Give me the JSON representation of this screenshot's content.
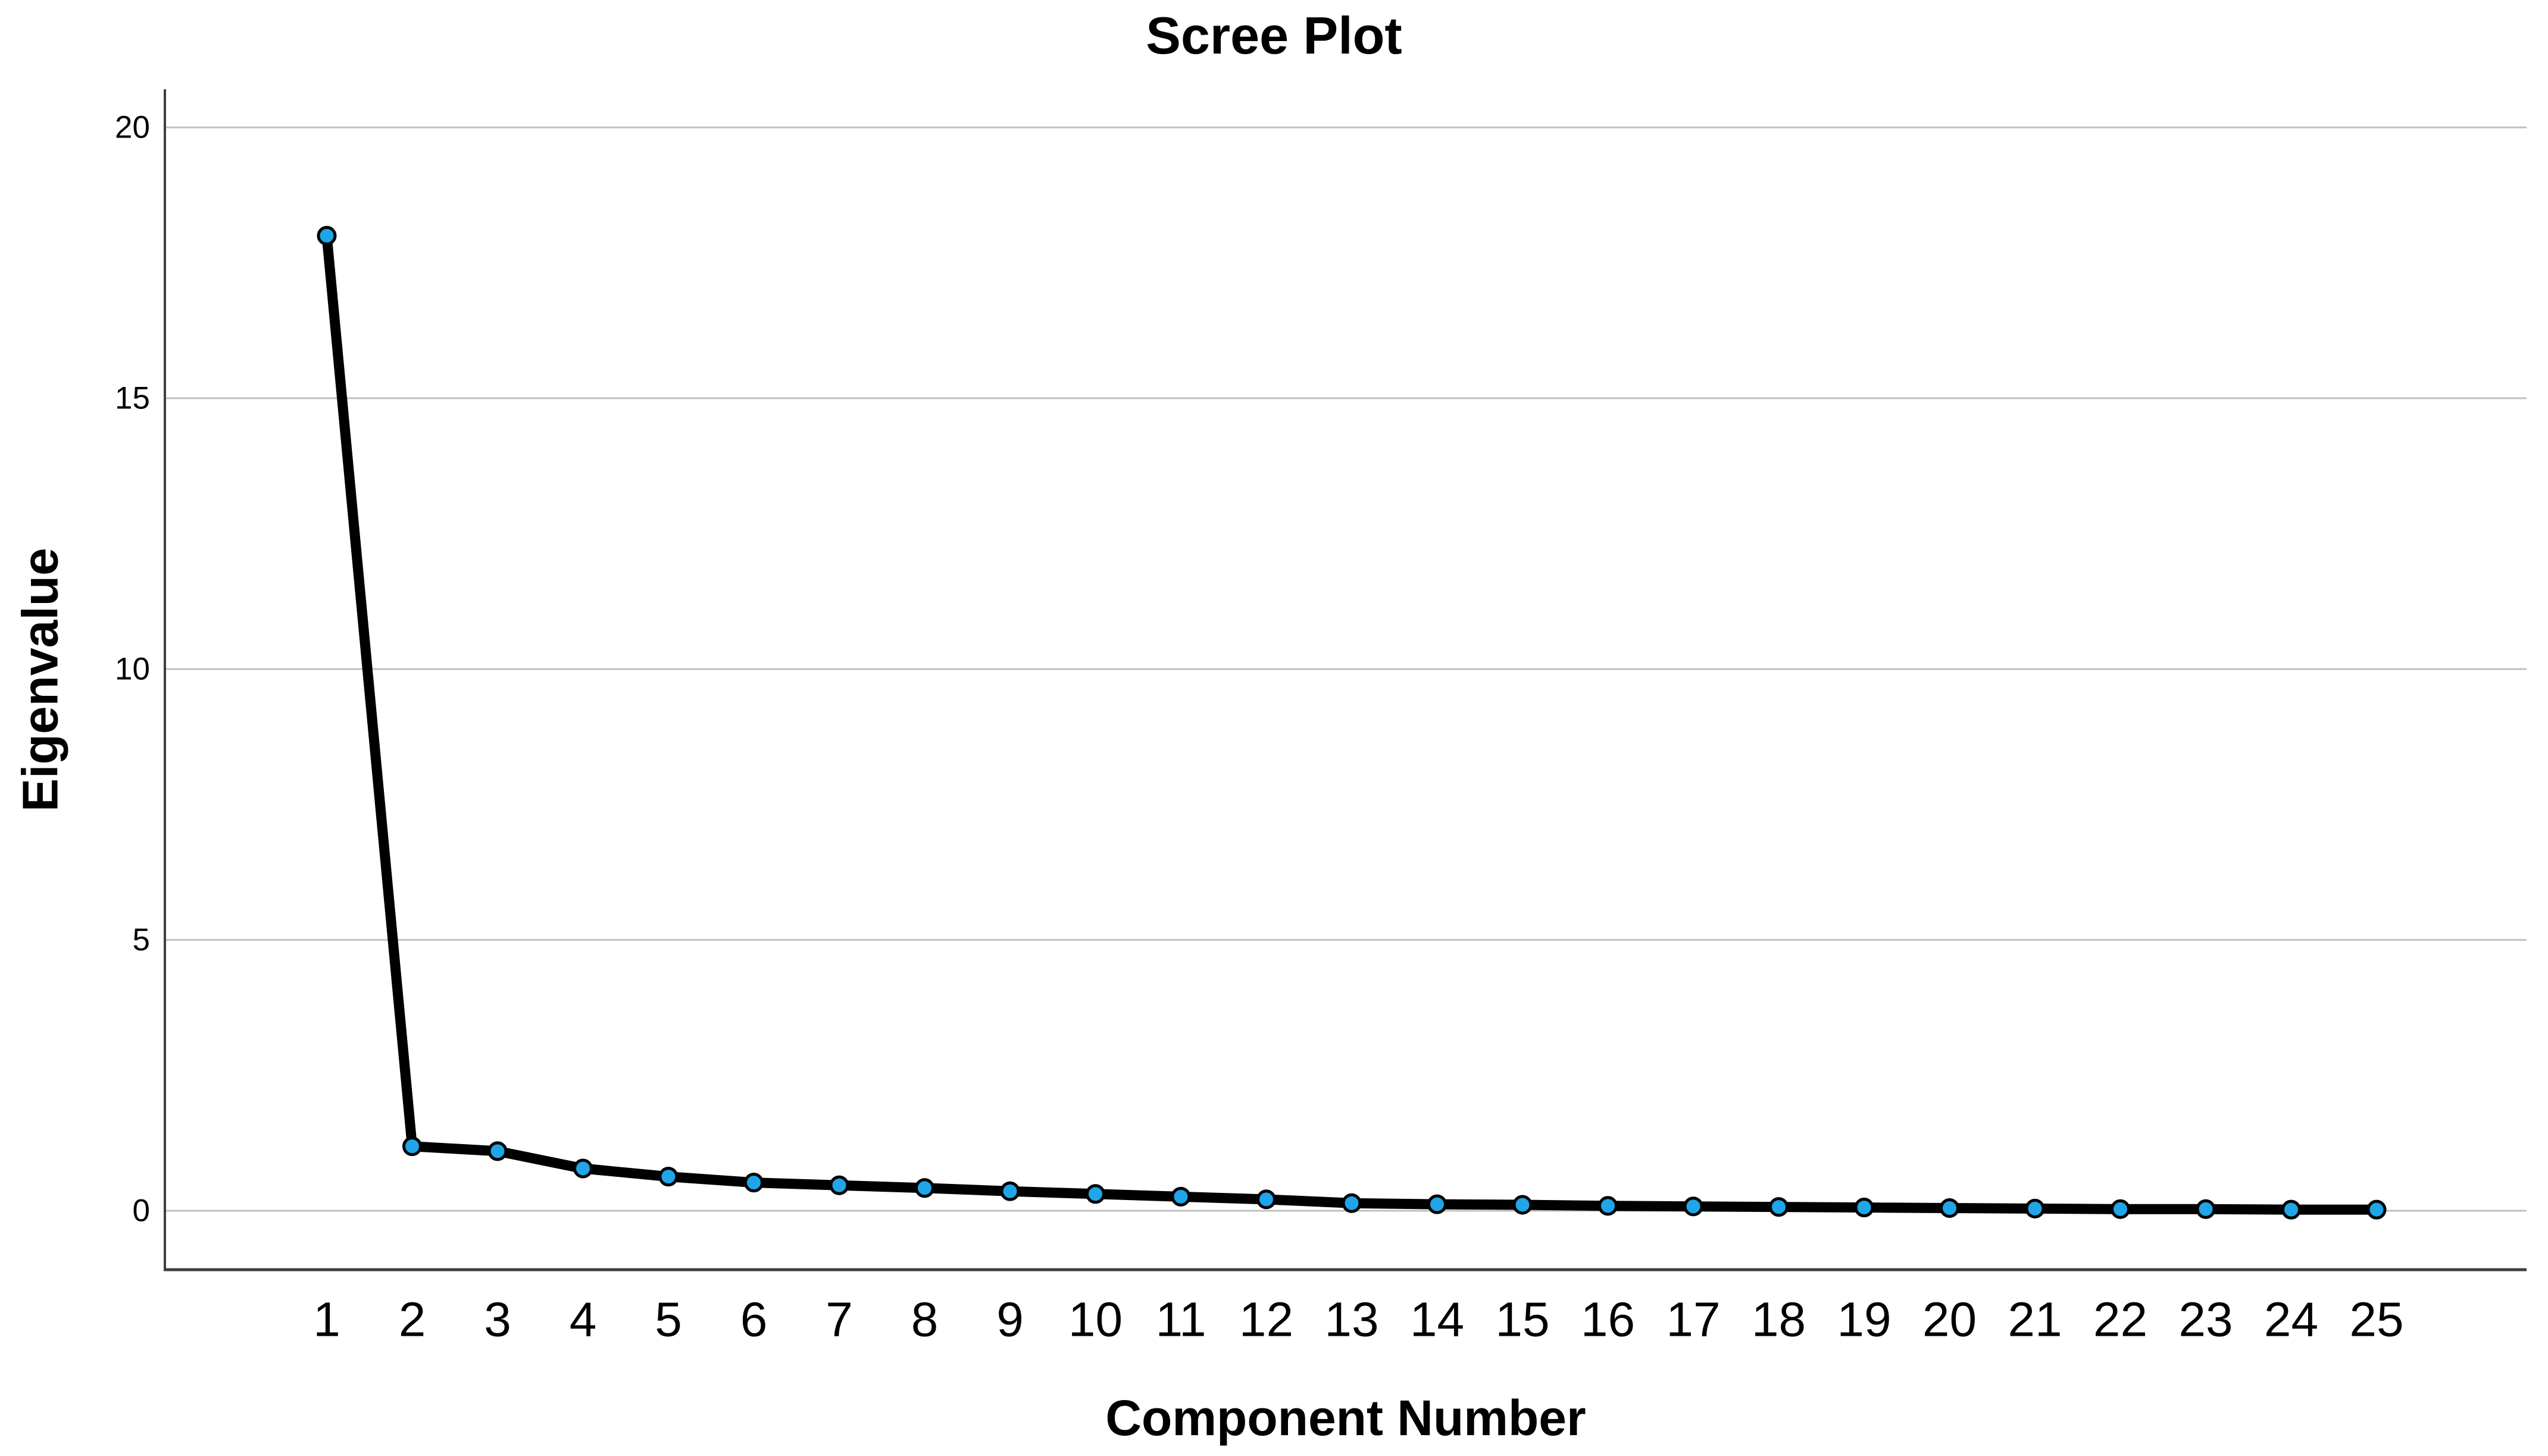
{
  "figure": {
    "background_color": "#ffffff"
  },
  "chart_data": {
    "type": "line",
    "title": "Scree Plot",
    "xlabel": "Component Number",
    "ylabel": "Eigenvalue",
    "x": [
      1,
      2,
      3,
      4,
      5,
      6,
      7,
      8,
      9,
      10,
      11,
      12,
      13,
      14,
      15,
      16,
      17,
      18,
      19,
      20,
      21,
      22,
      23,
      24,
      25
    ],
    "series": [
      {
        "name": "Eigenvalue",
        "values": [
          18.0,
          1.19,
          1.1,
          0.78,
          0.63,
          0.52,
          0.47,
          0.42,
          0.36,
          0.31,
          0.26,
          0.21,
          0.14,
          0.12,
          0.11,
          0.09,
          0.08,
          0.07,
          0.06,
          0.05,
          0.04,
          0.03,
          0.03,
          0.02,
          0.02
        ]
      }
    ],
    "y_ticks": [
      0,
      5,
      10,
      15,
      20
    ],
    "ylim": [
      -1.1,
      20.7
    ],
    "xlim": [
      -0.9,
      26.8
    ],
    "grid": "horizontal",
    "legend_position": "none",
    "colors": {
      "line": "#000000",
      "marker_fill": "#1FA5E8",
      "marker_stroke": "#000000",
      "gridline": "#c0c0c0",
      "axis": "#3f3f3f",
      "tick_text": "#000000",
      "background": "#ffffff"
    }
  }
}
